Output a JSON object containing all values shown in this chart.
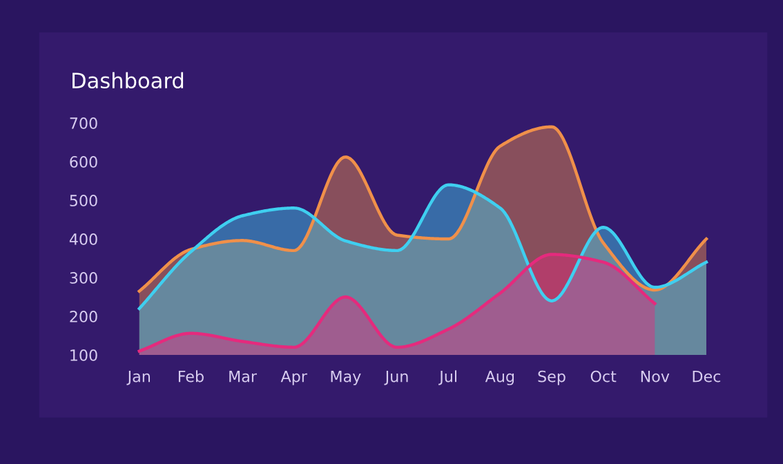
{
  "chart_data": {
    "type": "area",
    "title": "Dashboard",
    "categories": [
      "Jan",
      "Feb",
      "Mar",
      "Apr",
      "May",
      "Jun",
      "Jul",
      "Aug",
      "Sep",
      "Oct",
      "Nov",
      "Dec"
    ],
    "ylim": [
      100,
      700
    ],
    "yticks": [
      100,
      200,
      300,
      400,
      500,
      600,
      700
    ],
    "grid": false,
    "series": [
      {
        "color": "#f0904a",
        "values": [
          265,
          373,
          396,
          370,
          612,
          410,
          400,
          640,
          690,
          390,
          268,
          400
        ]
      },
      {
        "color": "#3fcff0",
        "values": [
          220,
          367,
          460,
          480,
          395,
          370,
          540,
          480,
          240,
          430,
          275,
          340
        ]
      },
      {
        "color": "#e52a7d",
        "values": [
          110,
          156,
          135,
          120,
          250,
          120,
          167,
          260,
          360,
          340,
          233,
          null
        ]
      }
    ]
  }
}
